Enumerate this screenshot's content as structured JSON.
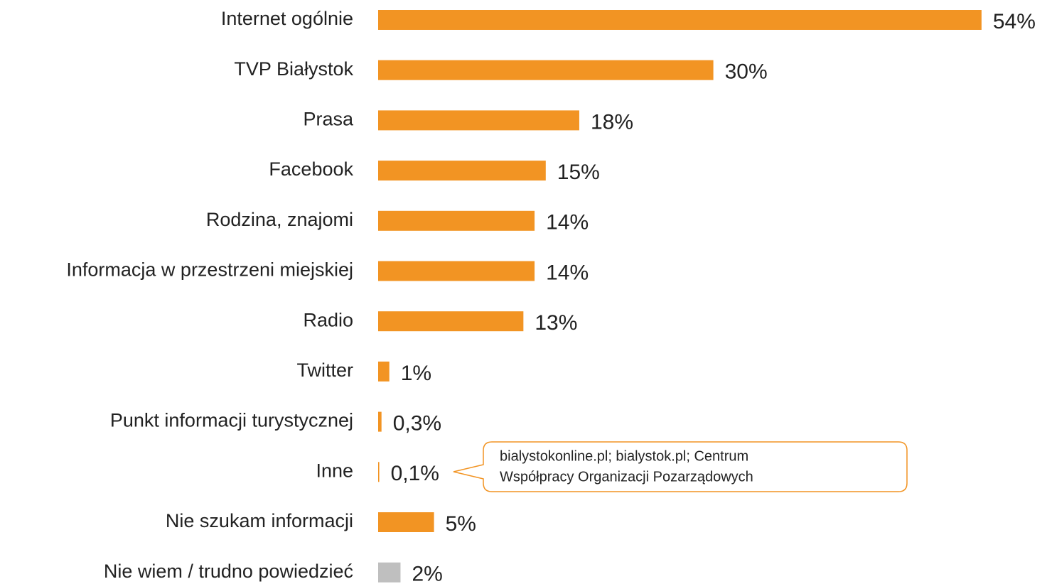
{
  "chart_data": {
    "type": "bar",
    "categories": [
      "Internet ogólnie",
      "TVP Białystok",
      "Prasa",
      "Facebook",
      "Rodzina, znajomi",
      "Informacja w przestrzeni miejskiej",
      "Radio",
      "Twitter",
      "Punkt informacji turystycznej",
      "Inne",
      "Nie szukam informacji",
      "Nie wiem / trudno powiedzieć"
    ],
    "values": [
      54,
      30,
      18,
      15,
      14,
      14,
      13,
      1,
      0.3,
      0.1,
      5,
      2
    ],
    "value_labels": [
      "54%",
      "30%",
      "18%",
      "15%",
      "14%",
      "14%",
      "13%",
      "1%",
      "0,3%",
      "0,1%",
      "5%",
      "2%"
    ],
    "colors": [
      "#f29423",
      "#f29423",
      "#f29423",
      "#f29423",
      "#f29423",
      "#f29423",
      "#f29423",
      "#f29423",
      "#f29423",
      "#f29423",
      "#f29423",
      "#bfbfbf"
    ],
    "annotation": [
      "bialystokonline.pl; bialystok.pl; Centrum",
      "Współpracy Organizacji Pozarządowych"
    ]
  }
}
